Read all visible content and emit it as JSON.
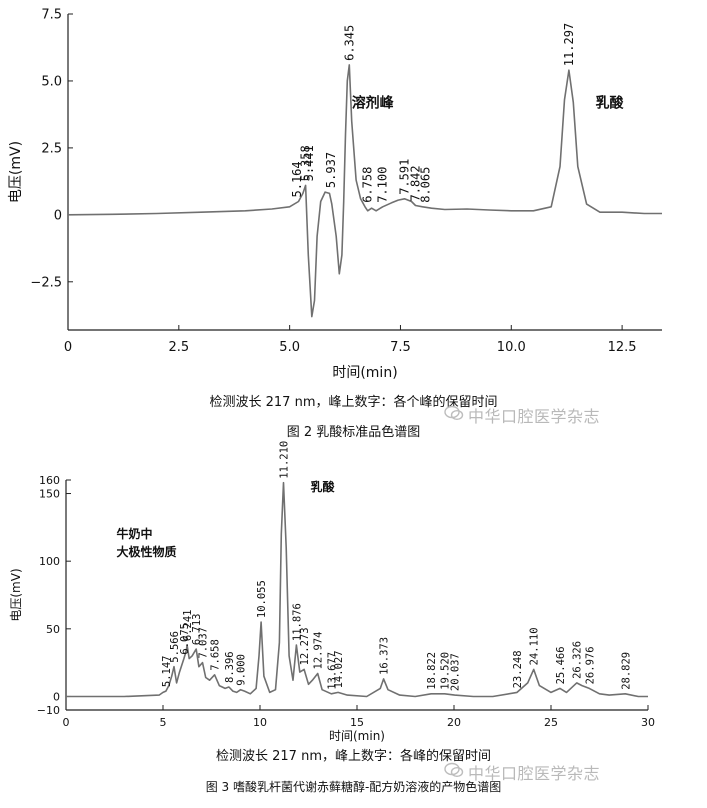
{
  "chart_data": [
    {
      "type": "line",
      "title": "",
      "xlabel": "时间(min)",
      "ylabel": "电压(mV)",
      "xlim": [
        0,
        13.4
      ],
      "ylim": [
        -4.3,
        7.5
      ],
      "xticks": [
        0,
        2.5,
        5.0,
        7.5,
        10.0,
        12.5
      ],
      "xtick_labels": [
        "0",
        "2.5",
        "5.0",
        "7.5",
        "10.0",
        "12.5"
      ],
      "yticks": [
        -2.5,
        0,
        2.5,
        5.0,
        7.5
      ],
      "ytick_labels": [
        "−2.5",
        "0",
        "2.5",
        "5.0",
        "7.5"
      ],
      "grid": false,
      "series": [
        {
          "x": [
            0,
            1,
            2,
            3,
            4,
            4.6,
            5.0,
            5.2,
            5.3,
            5.36,
            5.42,
            5.5,
            5.56,
            5.62,
            5.7,
            5.8,
            5.9,
            5.95,
            6.05,
            6.12,
            6.18,
            6.22,
            6.26,
            6.3,
            6.345,
            6.4,
            6.5,
            6.6,
            6.7,
            6.76,
            6.85,
            6.95,
            7.1,
            7.3,
            7.45,
            7.59,
            7.75,
            7.84,
            8.0,
            8.2,
            8.5,
            9.0,
            9.5,
            10.0,
            10.5,
            10.9,
            11.1,
            11.2,
            11.3,
            11.4,
            11.5,
            11.7,
            12.0,
            12.5,
            13.0,
            13.4
          ],
          "y": [
            0.0,
            0.02,
            0.05,
            0.1,
            0.15,
            0.22,
            0.3,
            0.5,
            0.8,
            1.1,
            -1.5,
            -3.8,
            -3.2,
            -0.8,
            0.5,
            0.85,
            0.8,
            0.4,
            -0.8,
            -2.2,
            -1.5,
            0.5,
            3.0,
            5.0,
            5.6,
            3.5,
            1.3,
            0.6,
            0.3,
            0.15,
            0.25,
            0.15,
            0.3,
            0.45,
            0.55,
            0.6,
            0.5,
            0.35,
            0.3,
            0.25,
            0.2,
            0.22,
            0.18,
            0.15,
            0.15,
            0.3,
            1.8,
            4.3,
            5.4,
            4.2,
            1.8,
            0.4,
            0.1,
            0.1,
            0.05,
            0.05
          ]
        }
      ],
      "peak_labels": [
        {
          "x": 5.164,
          "y": 0.5,
          "label": "5.164"
        },
        {
          "x": 5.358,
          "y": 1.1,
          "label": "5.358"
        },
        {
          "x": 5.441,
          "y": 1.1,
          "label": "5.441"
        },
        {
          "x": 5.937,
          "y": 0.85,
          "label": "5.937"
        },
        {
          "x": 6.345,
          "y": 5.6,
          "label": "6.345"
        },
        {
          "x": 6.758,
          "y": 0.3,
          "label": "6.758"
        },
        {
          "x": 7.1,
          "y": 0.3,
          "label": "7.100"
        },
        {
          "x": 7.591,
          "y": 0.6,
          "label": "7.591"
        },
        {
          "x": 7.842,
          "y": 0.35,
          "label": "7.842"
        },
        {
          "x": 8.065,
          "y": 0.3,
          "label": "8.065"
        },
        {
          "x": 11.297,
          "y": 5.4,
          "label": "11.297"
        }
      ],
      "annotations": [
        {
          "x": 6.4,
          "y": 4.0,
          "text": "溶剂峰"
        },
        {
          "x": 11.9,
          "y": 4.0,
          "text": "乳酸"
        }
      ],
      "caption_note": "检测波长 217 nm，峰上数字：各个峰的保留时间",
      "caption_title": "图 2 乳酸标准品色谱图"
    },
    {
      "type": "line",
      "title": "",
      "xlabel": "时间(min)",
      "ylabel": "电压(mV)",
      "xlim": [
        0,
        30
      ],
      "ylim": [
        -10,
        160
      ],
      "xticks": [
        0,
        5,
        10,
        15,
        20,
        25,
        30
      ],
      "xtick_labels": [
        "0",
        "5",
        "10",
        "15",
        "20",
        "25",
        "30"
      ],
      "yticks": [
        -10,
        0,
        50,
        100,
        150,
        160
      ],
      "ytick_labels": [
        "−10",
        "0",
        "50",
        "100",
        "150",
        "160"
      ],
      "grid": false,
      "series": [
        {
          "x": [
            0,
            3,
            4.8,
            5.0,
            5.147,
            5.3,
            5.45,
            5.566,
            5.7,
            5.85,
            6.075,
            6.2,
            6.241,
            6.35,
            6.5,
            6.713,
            6.85,
            7.037,
            7.2,
            7.4,
            7.658,
            7.9,
            8.2,
            8.396,
            8.6,
            8.8,
            9.0,
            9.2,
            9.5,
            9.8,
            9.95,
            10.055,
            10.2,
            10.5,
            10.8,
            11.0,
            11.1,
            11.21,
            11.35,
            11.5,
            11.7,
            11.876,
            12.05,
            12.273,
            12.5,
            12.7,
            12.974,
            13.2,
            13.677,
            14.027,
            14.5,
            15.5,
            16.2,
            16.373,
            16.6,
            17.2,
            18.0,
            18.822,
            19.52,
            20.037,
            21.0,
            22.0,
            23.248,
            23.8,
            24.11,
            24.4,
            25.0,
            25.466,
            25.8,
            26.326,
            26.6,
            26.976,
            27.5,
            28.0,
            28.829,
            29.5,
            30.0
          ],
          "y": [
            0,
            0,
            1,
            3,
            4,
            8,
            15,
            22,
            10,
            18,
            28,
            34,
            38,
            28,
            30,
            35,
            22,
            25,
            14,
            12,
            16,
            8,
            6,
            7,
            4,
            3,
            5,
            4,
            2,
            6,
            30,
            55,
            15,
            3,
            5,
            40,
            120,
            158,
            110,
            30,
            12,
            38,
            18,
            20,
            9,
            12,
            17,
            5,
            2,
            3,
            1,
            0,
            6,
            13,
            5,
            1,
            0,
            2,
            2,
            1,
            0,
            0,
            3,
            10,
            20,
            8,
            3,
            6,
            3,
            10,
            8,
            6,
            2,
            1,
            2,
            0,
            0
          ]
        }
      ],
      "peak_labels": [
        {
          "x": 5.147,
          "y": 4,
          "label": "5.147"
        },
        {
          "x": 5.566,
          "y": 22,
          "label": "5.566"
        },
        {
          "x": 6.075,
          "y": 28,
          "label": "6.075"
        },
        {
          "x": 6.241,
          "y": 38,
          "label": "6.241"
        },
        {
          "x": 6.713,
          "y": 35,
          "label": "6.713"
        },
        {
          "x": 7.037,
          "y": 25,
          "label": "7.037"
        },
        {
          "x": 7.658,
          "y": 16,
          "label": "7.658"
        },
        {
          "x": 8.396,
          "y": 7,
          "label": "8.396"
        },
        {
          "x": 9.0,
          "y": 5,
          "label": "9.000"
        },
        {
          "x": 10.055,
          "y": 55,
          "label": "10.055"
        },
        {
          "x": 11.21,
          "y": 158,
          "label": "11.210"
        },
        {
          "x": 11.876,
          "y": 38,
          "label": "11.876"
        },
        {
          "x": 12.273,
          "y": 20,
          "label": "12.273"
        },
        {
          "x": 12.974,
          "y": 17,
          "label": "12.974"
        },
        {
          "x": 13.677,
          "y": 2,
          "label": "13.677"
        },
        {
          "x": 14.027,
          "y": 3,
          "label": "14.027"
        },
        {
          "x": 16.373,
          "y": 13,
          "label": "16.373"
        },
        {
          "x": 18.822,
          "y": 2,
          "label": "18.822"
        },
        {
          "x": 19.52,
          "y": 2,
          "label": "19.520"
        },
        {
          "x": 20.037,
          "y": 1,
          "label": "20.037"
        },
        {
          "x": 23.248,
          "y": 3,
          "label": "23.248"
        },
        {
          "x": 24.11,
          "y": 20,
          "label": "24.110"
        },
        {
          "x": 25.466,
          "y": 6,
          "label": "25.466"
        },
        {
          "x": 26.326,
          "y": 10,
          "label": "26.326"
        },
        {
          "x": 26.976,
          "y": 6,
          "label": "26.976"
        },
        {
          "x": 28.829,
          "y": 2,
          "label": "28.829"
        }
      ],
      "annotations": [
        {
          "x": 12.6,
          "y": 152,
          "text": "乳酸"
        },
        {
          "x": 2.6,
          "y": 117,
          "text": "牛奶中"
        },
        {
          "x": 2.6,
          "y": 104,
          "text": "大极性物质"
        }
      ],
      "caption_note": "检测波长 217 nm，峰上数字：各峰的保留时间",
      "caption_title": "图 3 嗜酸乳杆菌代谢赤藓糖醇-配方奶溶液的产物色谱图"
    }
  ],
  "watermark": "中华口腔医学杂志",
  "colors": {
    "trace": "#707070",
    "axis": "#222222",
    "text": "#111111",
    "watermark": "#b9b9b9"
  }
}
